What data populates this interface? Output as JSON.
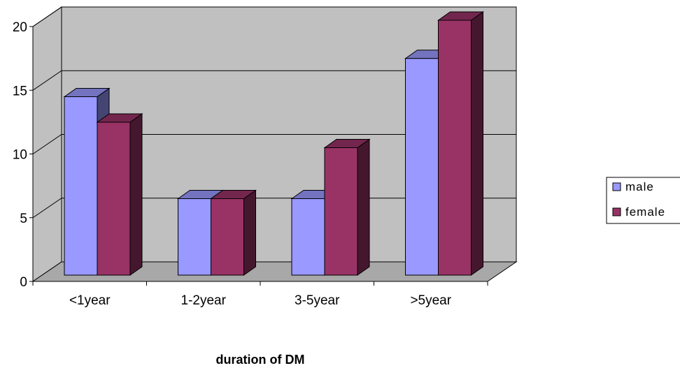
{
  "chart_data": {
    "type": "bar",
    "title": "",
    "xlabel": "duration of DM",
    "ylabel": "",
    "categories": [
      "<1year",
      "1-2year",
      "3-5year",
      ">5year"
    ],
    "series": [
      {
        "name": "male",
        "values": [
          14,
          6,
          6,
          17
        ]
      },
      {
        "name": "female",
        "values": [
          12,
          6,
          10,
          20
        ]
      }
    ],
    "ylim": [
      0,
      20
    ],
    "yticks": [
      "0",
      "5",
      "10",
      "15",
      "20"
    ],
    "grid": true,
    "legend": "right",
    "style": "3d-clustered-column"
  },
  "colors": {
    "male": "#9999ff",
    "female": "#993366",
    "wall": "#c0c0c0",
    "floor": "#a8a8a8"
  }
}
